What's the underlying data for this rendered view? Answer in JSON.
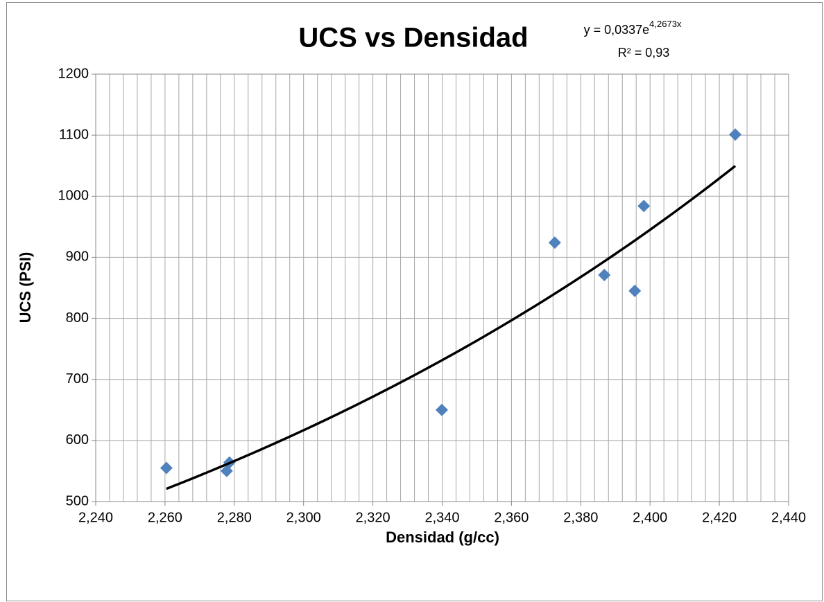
{
  "chart_data": {
    "type": "scatter",
    "title": "UCS vs Densidad",
    "x_label": "Densidad (g/cc)",
    "y_label": "UCS (PSI)",
    "color": "#4f81bd",
    "x": [
      2.2604,
      2.2778,
      2.2786,
      2.3399,
      2.3725,
      2.3868,
      2.3956,
      2.3982,
      2.4246
    ],
    "values": [
      555,
      550,
      564,
      650,
      924,
      871,
      845,
      984,
      1101
    ],
    "xlim": [
      2.24,
      2.44
    ],
    "xticks": [
      {
        "value": 2.24,
        "label": "2,240"
      },
      {
        "value": 2.26,
        "label": "2,260"
      },
      {
        "value": 2.28,
        "label": "2,280"
      },
      {
        "value": 2.3,
        "label": "2,300"
      },
      {
        "value": 2.32,
        "label": "2,320"
      },
      {
        "value": 2.34,
        "label": "2,340"
      },
      {
        "value": 2.36,
        "label": "2,360"
      },
      {
        "value": 2.38,
        "label": "2,380"
      },
      {
        "value": 2.4,
        "label": "2,400"
      },
      {
        "value": 2.42,
        "label": "2,420"
      },
      {
        "value": 2.44,
        "label": "2,440"
      }
    ],
    "x_minor_step": 0.004,
    "ylim": [
      500,
      1200
    ],
    "yticks": [
      500,
      600,
      700,
      800,
      900,
      1000,
      1100,
      1200
    ],
    "grid": true,
    "trendline": {
      "type": "exponential",
      "a": 0.0337,
      "b": 4.2673,
      "equation": "y = 0,0337e",
      "exponent": "4,2673x",
      "r2_text": "R² = 0,93",
      "color": "#000000"
    }
  }
}
